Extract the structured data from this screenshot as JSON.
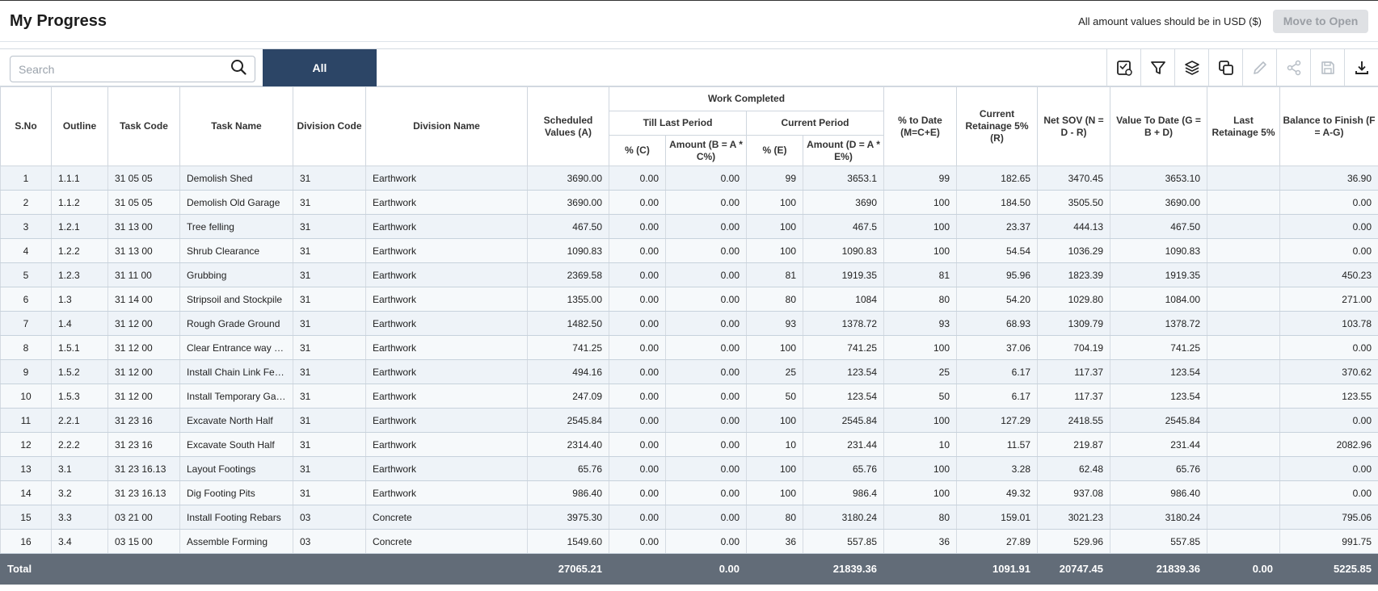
{
  "header": {
    "title": "My Progress",
    "note": "All amount values should be in USD ($)",
    "move_button": "Move to Open"
  },
  "toolbar": {
    "search_placeholder": "Search",
    "tab_all": "All",
    "icons": [
      "save-view-icon",
      "filter-icon",
      "layers-icon",
      "copy-icon",
      "edit-icon",
      "share-icon",
      "save-icon",
      "download-icon"
    ]
  },
  "table": {
    "headers": {
      "sno": "S.No",
      "outline": "Outline",
      "task_code": "Task Code",
      "task_name": "Task Name",
      "division_code": "Division Code",
      "division_name": "Division Name",
      "scheduled": "Scheduled Values (A)",
      "work_completed": "Work Completed",
      "till_last_period": "Till Last Period",
      "current_period": "Current Period",
      "pct_c": "% (C)",
      "amount_b": "Amount (B = A * C%)",
      "pct_e": "% (E)",
      "amount_d": "Amount (D = A * E%)",
      "pct_to_date": "% to Date (M=C+E)",
      "current_retainage": "Current Retainage 5% (R)",
      "net_sov": "Net SOV (N = D - R)",
      "value_to_date": "Value To Date (G = B + D)",
      "last_retainage": "Last Retainage 5%",
      "balance": "Balance to Finish (F = A-G)"
    },
    "rows": [
      [
        "1",
        "1.1.1",
        "31 05 05",
        "Demolish Shed",
        "31",
        "Earthwork",
        "3690.00",
        "0.00",
        "0.00",
        "99",
        "3653.1",
        "99",
        "182.65",
        "3470.45",
        "3653.10",
        "",
        "36.90"
      ],
      [
        "2",
        "1.1.2",
        "31 05 05",
        "Demolish Old Garage",
        "31",
        "Earthwork",
        "3690.00",
        "0.00",
        "0.00",
        "100",
        "3690",
        "100",
        "184.50",
        "3505.50",
        "3690.00",
        "",
        "0.00"
      ],
      [
        "3",
        "1.2.1",
        "31 13 00",
        "Tree felling",
        "31",
        "Earthwork",
        "467.50",
        "0.00",
        "0.00",
        "100",
        "467.5",
        "100",
        "23.37",
        "444.13",
        "467.50",
        "",
        "0.00"
      ],
      [
        "4",
        "1.2.2",
        "31 13 00",
        "Shrub Clearance",
        "31",
        "Earthwork",
        "1090.83",
        "0.00",
        "0.00",
        "100",
        "1090.83",
        "100",
        "54.54",
        "1036.29",
        "1090.83",
        "",
        "0.00"
      ],
      [
        "5",
        "1.2.3",
        "31 11 00",
        "Grubbing",
        "31",
        "Earthwork",
        "2369.58",
        "0.00",
        "0.00",
        "81",
        "1919.35",
        "81",
        "95.96",
        "1823.39",
        "1919.35",
        "",
        "450.23"
      ],
      [
        "6",
        "1.3",
        "31 14 00",
        "Stripsoil and Stockpile",
        "31",
        "Earthwork",
        "1355.00",
        "0.00",
        "0.00",
        "80",
        "1084",
        "80",
        "54.20",
        "1029.80",
        "1084.00",
        "",
        "271.00"
      ],
      [
        "7",
        "1.4",
        "31 12 00",
        "Rough Grade Ground",
        "31",
        "Earthwork",
        "1482.50",
        "0.00",
        "0.00",
        "93",
        "1378.72",
        "93",
        "68.93",
        "1309.79",
        "1378.72",
        "",
        "103.78"
      ],
      [
        "8",
        "1.5.1",
        "31 12 00",
        "Clear Entrance way a...",
        "31",
        "Earthwork",
        "741.25",
        "0.00",
        "0.00",
        "100",
        "741.25",
        "100",
        "37.06",
        "704.19",
        "741.25",
        "",
        "0.00"
      ],
      [
        "9",
        "1.5.2",
        "31 12 00",
        "Install Chain Link Fen...",
        "31",
        "Earthwork",
        "494.16",
        "0.00",
        "0.00",
        "25",
        "123.54",
        "25",
        "6.17",
        "117.37",
        "123.54",
        "",
        "370.62"
      ],
      [
        "10",
        "1.5.3",
        "31 12 00",
        "Install Temporary Gat...",
        "31",
        "Earthwork",
        "247.09",
        "0.00",
        "0.00",
        "50",
        "123.54",
        "50",
        "6.17",
        "117.37",
        "123.54",
        "",
        "123.55"
      ],
      [
        "11",
        "2.2.1",
        "31 23 16",
        "Excavate North Half",
        "31",
        "Earthwork",
        "2545.84",
        "0.00",
        "0.00",
        "100",
        "2545.84",
        "100",
        "127.29",
        "2418.55",
        "2545.84",
        "",
        "0.00"
      ],
      [
        "12",
        "2.2.2",
        "31 23 16",
        "Excavate South Half",
        "31",
        "Earthwork",
        "2314.40",
        "0.00",
        "0.00",
        "10",
        "231.44",
        "10",
        "11.57",
        "219.87",
        "231.44",
        "",
        "2082.96"
      ],
      [
        "13",
        "3.1",
        "31 23 16.13",
        "Layout Footings",
        "31",
        "Earthwork",
        "65.76",
        "0.00",
        "0.00",
        "100",
        "65.76",
        "100",
        "3.28",
        "62.48",
        "65.76",
        "",
        "0.00"
      ],
      [
        "14",
        "3.2",
        "31 23 16.13",
        "Dig Footing Pits",
        "31",
        "Earthwork",
        "986.40",
        "0.00",
        "0.00",
        "100",
        "986.4",
        "100",
        "49.32",
        "937.08",
        "986.40",
        "",
        "0.00"
      ],
      [
        "15",
        "3.3",
        "03 21 00",
        "Install Footing Rebars",
        "03",
        "Concrete",
        "3975.30",
        "0.00",
        "0.00",
        "80",
        "3180.24",
        "80",
        "159.01",
        "3021.23",
        "3180.24",
        "",
        "795.06"
      ],
      [
        "16",
        "3.4",
        "03 15 00",
        "Assemble Forming",
        "03",
        "Concrete",
        "1549.60",
        "0.00",
        "0.00",
        "36",
        "557.85",
        "36",
        "27.89",
        "529.96",
        "557.85",
        "",
        "991.75"
      ]
    ],
    "total": {
      "label": "Total",
      "scheduled": "27065.21",
      "amount_b": "0.00",
      "amount_d": "21839.36",
      "current_retainage": "1091.91",
      "net_sov": "20747.45",
      "value_to_date": "21839.36",
      "last_retainage": "0.00",
      "balance": "5225.85"
    }
  }
}
